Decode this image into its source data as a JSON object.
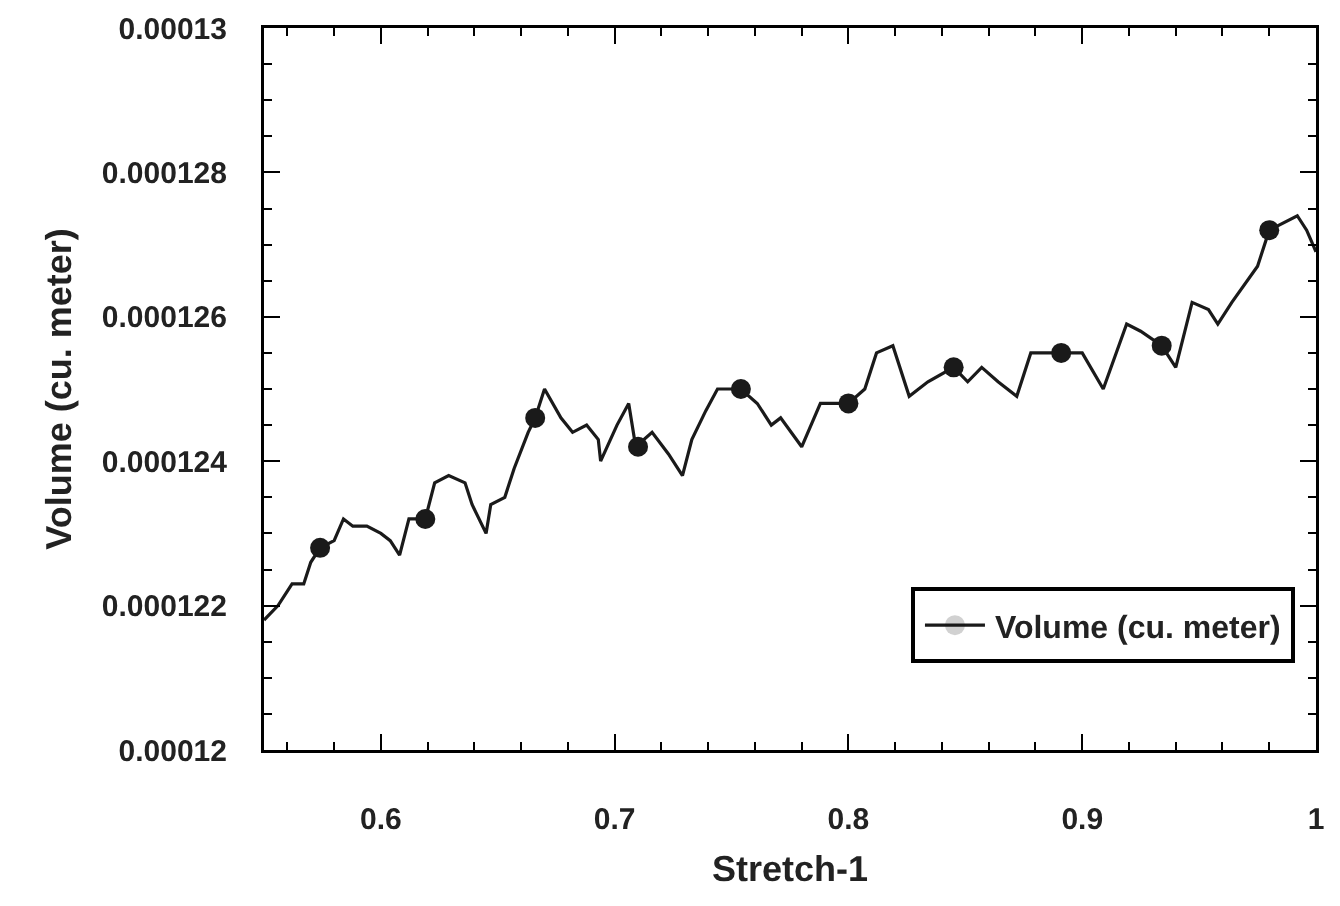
{
  "chart_data": {
    "type": "line",
    "xlabel": "Stretch-1",
    "ylabel": "Volume (cu. meter)",
    "x": [
      0.55,
      0.556,
      0.562,
      0.567,
      0.57,
      0.574,
      0.58,
      0.584,
      0.588,
      0.594,
      0.6,
      0.604,
      0.608,
      0.612,
      0.619,
      0.623,
      0.629,
      0.636,
      0.639,
      0.645,
      0.647,
      0.653,
      0.657,
      0.663,
      0.666,
      0.67,
      0.677,
      0.682,
      0.688,
      0.693,
      0.694,
      0.701,
      0.706,
      0.709,
      0.716,
      0.723,
      0.729,
      0.733,
      0.739,
      0.744,
      0.754,
      0.761,
      0.767,
      0.771,
      0.78,
      0.788,
      0.8,
      0.807,
      0.812,
      0.819,
      0.826,
      0.834,
      0.845,
      0.851,
      0.857,
      0.864,
      0.872,
      0.878,
      0.891,
      0.9,
      0.909,
      0.919,
      0.925,
      0.934,
      0.94,
      0.947,
      0.954,
      0.958,
      0.964,
      0.975,
      0.98,
      0.992,
      0.996,
      1.0
    ],
    "series": [
      {
        "name": "Volume (cu. meter)",
        "color": "#1a1a1a",
        "marker": "none",
        "values": [
          0.0001218,
          0.000122,
          0.0001223,
          0.0001223,
          0.0001226,
          0.0001228,
          0.0001229,
          0.0001232,
          0.0001231,
          0.0001231,
          0.000123,
          0.0001229,
          0.0001227,
          0.0001232,
          0.0001232,
          0.0001237,
          0.0001238,
          0.0001237,
          0.0001234,
          0.000123,
          0.0001234,
          0.0001235,
          0.0001239,
          0.0001244,
          0.0001246,
          0.000125,
          0.0001246,
          0.0001244,
          0.0001245,
          0.0001243,
          0.000124,
          0.0001245,
          0.0001248,
          0.0001242,
          0.0001244,
          0.0001241,
          0.0001238,
          0.0001243,
          0.0001247,
          0.000125,
          0.000125,
          0.0001248,
          0.0001245,
          0.0001246,
          0.0001242,
          0.0001248,
          0.0001248,
          0.000125,
          0.0001255,
          0.0001256,
          0.0001249,
          0.0001251,
          0.0001253,
          0.0001251,
          0.0001253,
          0.0001251,
          0.0001249,
          0.0001255,
          0.0001255,
          0.0001255,
          0.000125,
          0.0001259,
          0.0001258,
          0.0001256,
          0.0001253,
          0.0001262,
          0.0001261,
          0.0001259,
          0.0001262,
          0.0001267,
          0.0001272,
          0.0001274,
          0.0001272,
          0.0001269
        ]
      },
      {
        "type": "scatter",
        "color": "#1a1a1a",
        "marker": "circle",
        "x": [
          0.574,
          0.619,
          0.666,
          0.71,
          0.754,
          0.8,
          0.845,
          0.891,
          0.934,
          0.98
        ],
        "values": [
          0.0001228,
          0.0001232,
          0.0001246,
          0.0001242,
          0.000125,
          0.0001248,
          0.0001253,
          0.0001255,
          0.0001256,
          0.0001272
        ]
      }
    ],
    "xlim": [
      0.55,
      1
    ],
    "xticks": [
      0.6,
      0.7,
      0.8,
      0.9,
      1
    ],
    "ylim": [
      0.00012,
      0.00013
    ],
    "yticks": [
      0.00012,
      0.000122,
      0.000124,
      0.000126,
      0.000128,
      0.00013
    ],
    "grid": false,
    "legend": "bottom right",
    "line_style": "solid"
  }
}
